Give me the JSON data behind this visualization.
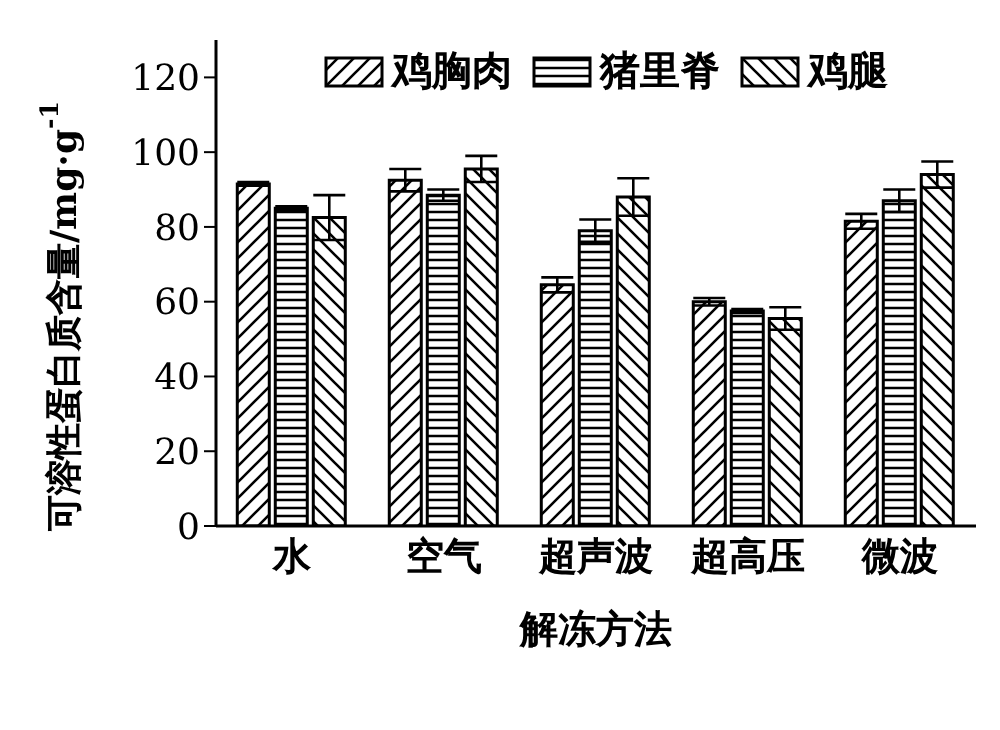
{
  "chart_data": {
    "type": "bar",
    "xlabel": "解冻方法",
    "ylabel": "可溶性蛋白质含量/mg·g$^{-1}$",
    "categories": [
      "水",
      "空气",
      "超声波",
      "超高压",
      "微波"
    ],
    "series": [
      {
        "name": "鸡胸肉",
        "color": "#000000",
        "values": [
          91.5,
          92.5,
          64.5,
          60,
          81.5
        ],
        "errors": [
          0.5,
          3,
          2,
          1,
          2
        ]
      },
      {
        "name": "猪里脊",
        "color": "#000000",
        "values": [
          85,
          88.5,
          79,
          57.5,
          87
        ],
        "errors": [
          0.5,
          1.5,
          3,
          0.5,
          3
        ]
      },
      {
        "name": "鸡腿",
        "color": "#000000",
        "values": [
          82.5,
          95.5,
          88,
          55.5,
          94
        ],
        "errors": [
          6,
          3.5,
          5,
          3,
          3.5
        ]
      }
    ],
    "ylim": [
      0,
      130
    ],
    "yticks": [
      0,
      20,
      40,
      60,
      80,
      100,
      120
    ],
    "grid": false,
    "legend": "top"
  }
}
